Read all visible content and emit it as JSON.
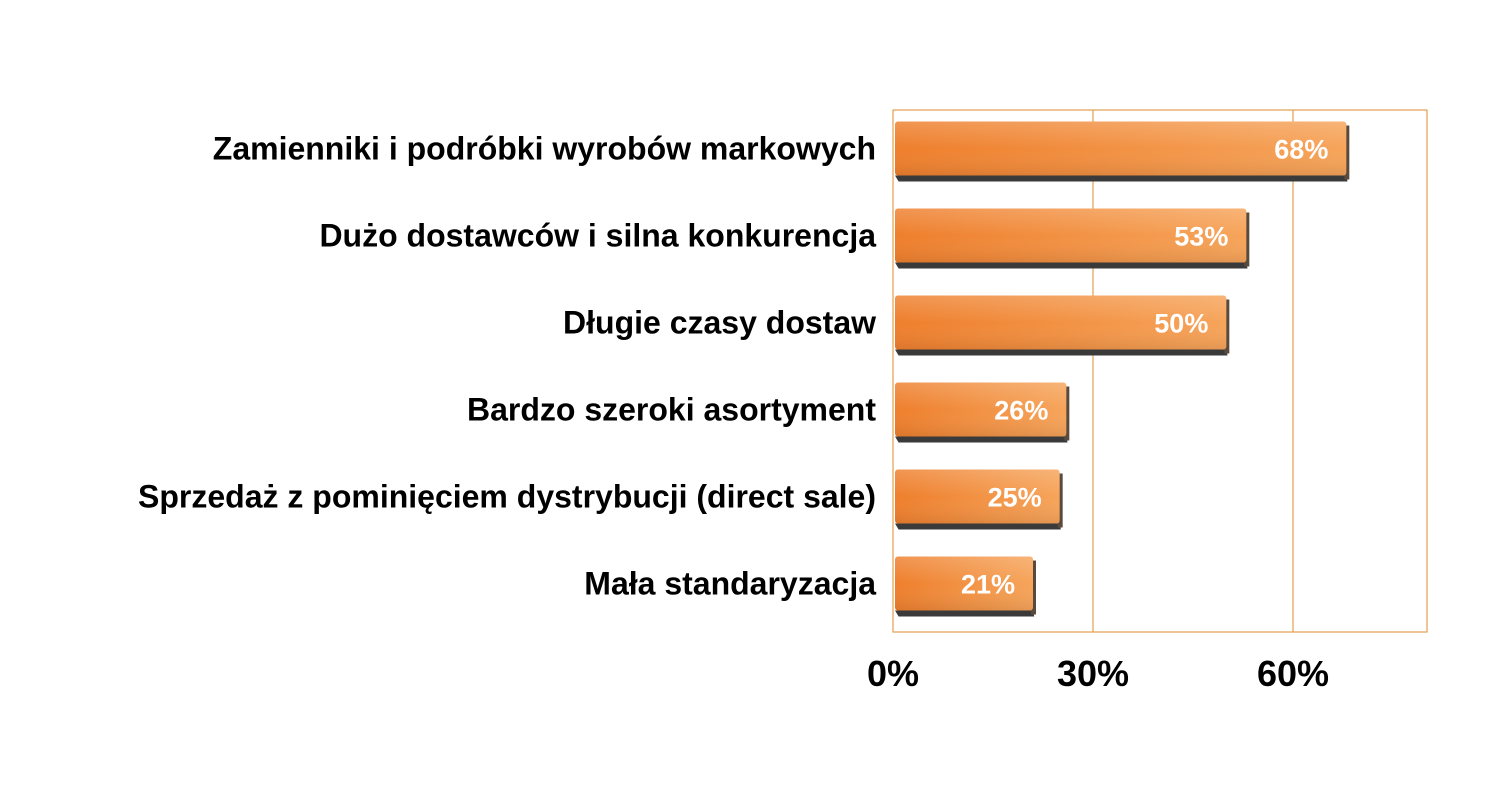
{
  "chart_data": {
    "type": "bar",
    "orientation": "horizontal",
    "categories": [
      "Zamienniki i podróbki wyrobów markowych",
      "Dużo dostawców i silna konkurencja",
      "Długie czasy dostaw",
      "Bardzo szeroki asortyment",
      "Sprzedaż z pominięciem dystrybucji (direct sale)",
      "Mała standaryzacja"
    ],
    "values": [
      68,
      53,
      50,
      26,
      25,
      21
    ],
    "value_labels": [
      "68%",
      "53%",
      "50%",
      "26%",
      "25%",
      "21%"
    ],
    "xlim": [
      0,
      80
    ],
    "xticks": [
      0,
      30,
      60
    ],
    "xtick_labels": [
      "0%",
      "30%",
      "60%"
    ],
    "grid": true,
    "legend": "none",
    "colors": {
      "bar_light": "#f6a45a",
      "bar_dark": "#ee7f2d",
      "bar_shadow": "#3a3a3a",
      "frame": "#e3a04f",
      "gridline": "#e3a04f",
      "label_text": "#000000",
      "value_text": "#ffffff"
    }
  }
}
